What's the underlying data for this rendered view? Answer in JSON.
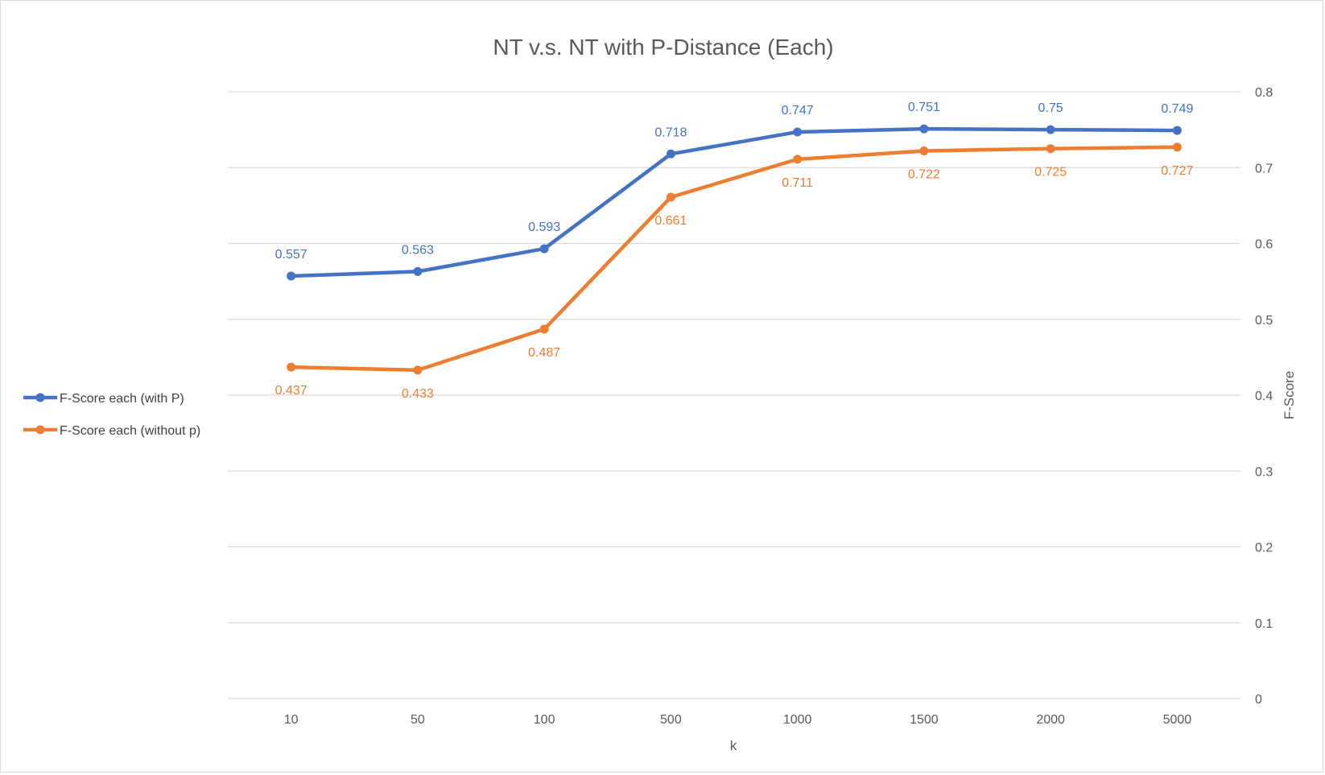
{
  "chart_data": {
    "type": "line",
    "title": "NT v.s. NT with P-Distance (Each)",
    "xlabel": "k",
    "ylabel": "F-Score",
    "categories": [
      "10",
      "50",
      "100",
      "500",
      "1000",
      "1500",
      "2000",
      "5000"
    ],
    "ylim": [
      0,
      0.8
    ],
    "yticks": [
      "0",
      "0.1",
      "0.2",
      "0.3",
      "0.4",
      "0.5",
      "0.6",
      "0.7",
      "0.8"
    ],
    "y_axis_side": "right",
    "grid": true,
    "legend_position": "left",
    "series": [
      {
        "name": "F-Score each (with P)",
        "color": "#4472C4",
        "values": [
          0.557,
          0.563,
          0.593,
          0.718,
          0.747,
          0.751,
          0.75,
          0.749
        ],
        "labels": [
          "0.557",
          "0.563",
          "0.593",
          "0.718",
          "0.747",
          "0.751",
          "0.75",
          "0.749"
        ],
        "label_position": "above"
      },
      {
        "name": "F-Score each (without p)",
        "color": "#ED7D31",
        "values": [
          0.437,
          0.433,
          0.487,
          0.661,
          0.711,
          0.722,
          0.725,
          0.727
        ],
        "labels": [
          "0.437",
          "0.433",
          "0.487",
          "0.661",
          "0.711",
          "0.722",
          "0.725",
          "0.727"
        ],
        "label_position": "below"
      }
    ]
  }
}
